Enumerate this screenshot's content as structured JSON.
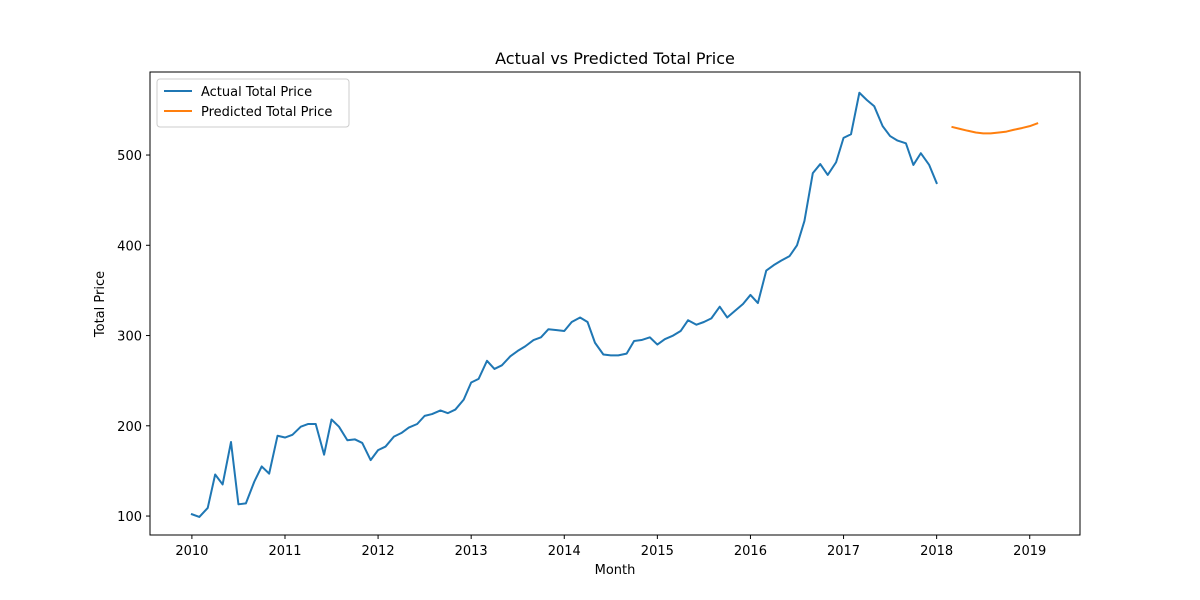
{
  "chart_data": {
    "type": "line",
    "title": "Actual vs Predicted Total Price",
    "xlabel": "Month",
    "ylabel": "Total Price",
    "xlim": [
      2009.55,
      2019.54
    ],
    "ylim": [
      79,
      592
    ],
    "x_ticks": [
      2010,
      2011,
      2012,
      2013,
      2014,
      2015,
      2016,
      2017,
      2018,
      2019
    ],
    "x_tick_labels": [
      "2010",
      "2011",
      "2012",
      "2013",
      "2014",
      "2015",
      "2016",
      "2017",
      "2018",
      "2019"
    ],
    "y_ticks": [
      100,
      200,
      300,
      400,
      500
    ],
    "y_tick_labels": [
      "100",
      "200",
      "300",
      "400",
      "500"
    ],
    "grid": false,
    "legend_position": "top-left",
    "series": [
      {
        "name": "Actual Total Price",
        "color": "#1f77b4",
        "points": [
          [
            2010.0,
            102
          ],
          [
            2010.08,
            99
          ],
          [
            2010.17,
            109
          ],
          [
            2010.25,
            146
          ],
          [
            2010.33,
            135
          ],
          [
            2010.42,
            182
          ],
          [
            2010.5,
            113
          ],
          [
            2010.58,
            114
          ],
          [
            2010.67,
            138
          ],
          [
            2010.75,
            155
          ],
          [
            2010.83,
            147
          ],
          [
            2010.92,
            189
          ],
          [
            2011.0,
            187
          ],
          [
            2011.08,
            190
          ],
          [
            2011.17,
            199
          ],
          [
            2011.25,
            202
          ],
          [
            2011.33,
            202
          ],
          [
            2011.42,
            168
          ],
          [
            2011.5,
            207
          ],
          [
            2011.58,
            199
          ],
          [
            2011.67,
            184
          ],
          [
            2011.75,
            185
          ],
          [
            2011.83,
            181
          ],
          [
            2011.92,
            162
          ],
          [
            2012.0,
            173
          ],
          [
            2012.08,
            177
          ],
          [
            2012.17,
            188
          ],
          [
            2012.25,
            192
          ],
          [
            2012.33,
            198
          ],
          [
            2012.42,
            202
          ],
          [
            2012.5,
            211
          ],
          [
            2012.58,
            213
          ],
          [
            2012.67,
            217
          ],
          [
            2012.75,
            214
          ],
          [
            2012.83,
            218
          ],
          [
            2012.92,
            229
          ],
          [
            2013.0,
            248
          ],
          [
            2013.08,
            252
          ],
          [
            2013.17,
            272
          ],
          [
            2013.25,
            263
          ],
          [
            2013.33,
            267
          ],
          [
            2013.42,
            277
          ],
          [
            2013.5,
            283
          ],
          [
            2013.58,
            288
          ],
          [
            2013.67,
            295
          ],
          [
            2013.75,
            298
          ],
          [
            2013.83,
            307
          ],
          [
            2013.92,
            306
          ],
          [
            2014.0,
            305
          ],
          [
            2014.08,
            315
          ],
          [
            2014.17,
            320
          ],
          [
            2014.25,
            315
          ],
          [
            2014.33,
            292
          ],
          [
            2014.42,
            279
          ],
          [
            2014.5,
            278
          ],
          [
            2014.58,
            278
          ],
          [
            2014.67,
            280
          ],
          [
            2014.75,
            294
          ],
          [
            2014.83,
            295
          ],
          [
            2014.92,
            298
          ],
          [
            2015.0,
            290
          ],
          [
            2015.08,
            296
          ],
          [
            2015.17,
            300
          ],
          [
            2015.25,
            305
          ],
          [
            2015.33,
            317
          ],
          [
            2015.42,
            312
          ],
          [
            2015.5,
            315
          ],
          [
            2015.58,
            319
          ],
          [
            2015.67,
            332
          ],
          [
            2015.75,
            320
          ],
          [
            2015.83,
            327
          ],
          [
            2015.92,
            335
          ],
          [
            2016.0,
            345
          ],
          [
            2016.08,
            336
          ],
          [
            2016.17,
            372
          ],
          [
            2016.25,
            378
          ],
          [
            2016.33,
            383
          ],
          [
            2016.42,
            388
          ],
          [
            2016.5,
            400
          ],
          [
            2016.58,
            427
          ],
          [
            2016.67,
            480
          ],
          [
            2016.75,
            490
          ],
          [
            2016.83,
            478
          ],
          [
            2016.92,
            492
          ],
          [
            2017.0,
            519
          ],
          [
            2017.08,
            523
          ],
          [
            2017.17,
            569
          ],
          [
            2017.25,
            561
          ],
          [
            2017.33,
            554
          ],
          [
            2017.42,
            532
          ],
          [
            2017.5,
            521
          ],
          [
            2017.58,
            516
          ],
          [
            2017.67,
            513
          ],
          [
            2017.75,
            489
          ],
          [
            2017.83,
            502
          ],
          [
            2017.92,
            489
          ],
          [
            2018.0,
            469
          ]
        ]
      },
      {
        "name": "Predicted Total Price",
        "color": "#ff7f0e",
        "points": [
          [
            2018.17,
            531
          ],
          [
            2018.25,
            529
          ],
          [
            2018.33,
            527
          ],
          [
            2018.42,
            525
          ],
          [
            2018.5,
            524
          ],
          [
            2018.58,
            524
          ],
          [
            2018.67,
            525
          ],
          [
            2018.75,
            526
          ],
          [
            2018.83,
            528
          ],
          [
            2018.92,
            530
          ],
          [
            2019.0,
            532
          ],
          [
            2019.08,
            535
          ]
        ]
      }
    ]
  }
}
